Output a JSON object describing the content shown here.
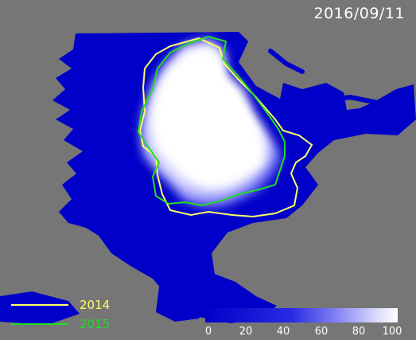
{
  "date": "2016/09/11",
  "colors": {
    "background": "#000000",
    "land": "#767676",
    "ocean_ice_low": "#0000c8",
    "ice_full": "#ffffff",
    "line_2014": "#ffff66",
    "line_2015": "#22dd22"
  },
  "legend": {
    "items": [
      {
        "label": "2014",
        "color": "#ffff66"
      },
      {
        "label": "2015",
        "color": "#22dd22"
      }
    ]
  },
  "colorbar": {
    "min": 0,
    "max": 100,
    "ticks": [
      "0",
      "20",
      "40",
      "60",
      "80",
      "100"
    ]
  }
}
